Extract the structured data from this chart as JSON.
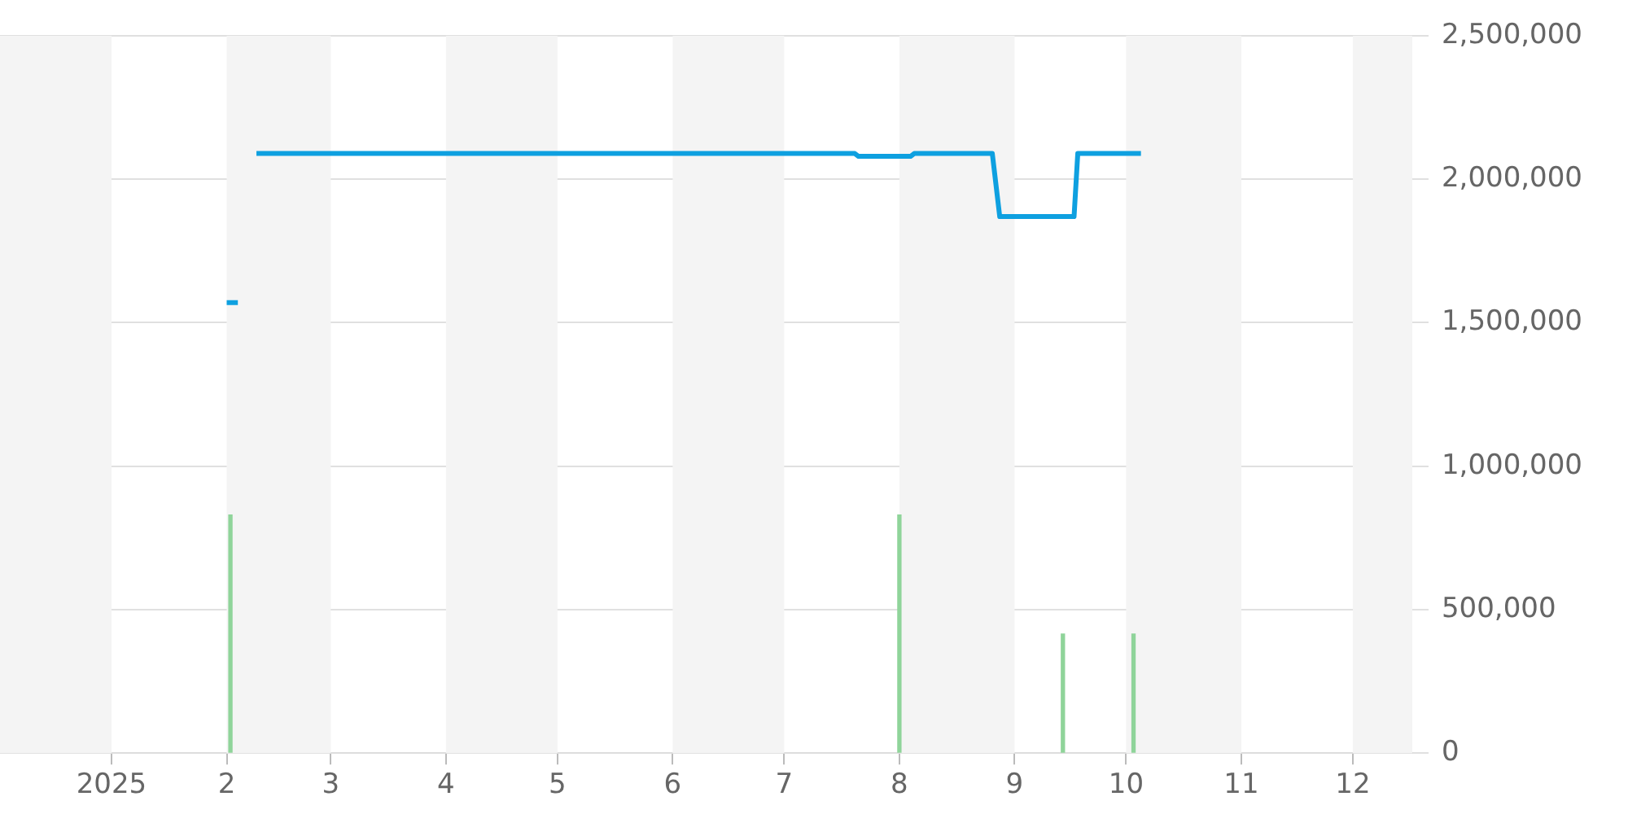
{
  "chart_data": {
    "type": "line",
    "series": [
      {
        "color": "#0ea0e0",
        "x": [
          "2025-02-01",
          "2025-02-04",
          "2025-02-06",
          "2025-02-09",
          "2025-07-20",
          "2025-07-21",
          "2025-08-04",
          "2025-08-05",
          "2025-08-26",
          "2025-08-28",
          "2025-09-17",
          "2025-09-18",
          "2025-10-05"
        ],
        "values": [
          1570000,
          1570000,
          null,
          2090000,
          2090000,
          2080000,
          2080000,
          2090000,
          2090000,
          1870000,
          1870000,
          2090000,
          2090000
        ]
      },
      {
        "type": "bar",
        "color": "#8fd49a",
        "x": [
          "2025-02-02",
          "2025-08-01",
          "2025-09-14",
          "2025-10-03"
        ],
        "values": [
          830000,
          830000,
          415000,
          415000
        ]
      }
    ],
    "xlim": [
      "2024-12-02",
      "2025-12-17"
    ],
    "xticks": [
      {
        "value": "2025-01-01",
        "label": "2025"
      },
      {
        "value": "2025-02-01",
        "label": "2"
      },
      {
        "value": "2025-03-01",
        "label": "3"
      },
      {
        "value": "2025-04-01",
        "label": "4"
      },
      {
        "value": "2025-05-01",
        "label": "5"
      },
      {
        "value": "2025-06-01",
        "label": "6"
      },
      {
        "value": "2025-07-01",
        "label": "7"
      },
      {
        "value": "2025-08-01",
        "label": "8"
      },
      {
        "value": "2025-09-01",
        "label": "9"
      },
      {
        "value": "2025-10-01",
        "label": "10"
      },
      {
        "value": "2025-11-01",
        "label": "11"
      },
      {
        "value": "2025-12-01",
        "label": "12"
      }
    ],
    "ylim": [
      0,
      2500000
    ],
    "yticks": [
      {
        "value": 0,
        "label": "0"
      },
      {
        "value": 500000,
        "label": "500,000"
      },
      {
        "value": 1000000,
        "label": "1,000,000"
      },
      {
        "value": 1500000,
        "label": "1,500,000"
      },
      {
        "value": 2000000,
        "label": "2,000,000"
      },
      {
        "value": 2500000,
        "label": "2,500,000"
      }
    ],
    "bands": [
      {
        "axis": "x",
        "from": "2024-12-02",
        "to": "2025-01-01",
        "color": "#f4f4f4"
      },
      {
        "axis": "x",
        "from": "2025-02-01",
        "to": "2025-03-01",
        "color": "#f4f4f4"
      },
      {
        "axis": "x",
        "from": "2025-04-01",
        "to": "2025-05-01",
        "color": "#f4f4f4"
      },
      {
        "axis": "x",
        "from": "2025-06-01",
        "to": "2025-07-01",
        "color": "#f4f4f4"
      },
      {
        "axis": "x",
        "from": "2025-08-01",
        "to": "2025-09-01",
        "color": "#f4f4f4"
      },
      {
        "axis": "x",
        "from": "2025-10-01",
        "to": "2025-11-01",
        "color": "#f4f4f4"
      },
      {
        "axis": "x",
        "from": "2025-12-01",
        "to": "2025-12-17",
        "color": "#f4f4f4"
      }
    ],
    "grid": "y",
    "legend": false,
    "marker": "none"
  }
}
